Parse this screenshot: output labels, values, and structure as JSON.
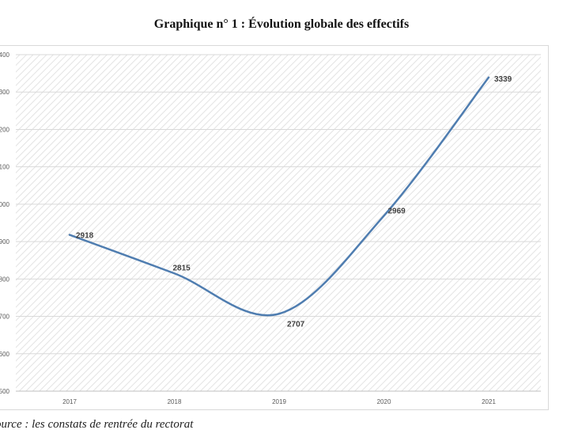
{
  "title": "Graphique n° 1 : Évolution globale des effectifs",
  "source": "ource : les constats de rentrée du rectorat",
  "colors": {
    "line": "#4f7db0",
    "grid": "#d9d9d9",
    "hatch": "#e3e3e3",
    "axis_text": "#595959"
  },
  "chart_data": {
    "type": "line",
    "title": "Graphique n° 1 : Évolution globale des effectifs",
    "categories": [
      "2017",
      "2018",
      "2019",
      "2020",
      "2021"
    ],
    "series": [
      {
        "values": [
          2918,
          2815,
          2707,
          2969,
          3339
        ]
      }
    ],
    "data_labels": [
      "2918",
      "2815",
      "2707",
      "2969",
      "3339"
    ],
    "y_tick_labels": [
      "400",
      "300",
      "200",
      "100",
      "000",
      "900",
      "800",
      "700",
      "600",
      "500"
    ],
    "ylim": [
      2500,
      3400
    ],
    "y_step": 100,
    "smooth": true,
    "grid": true,
    "legend": "none",
    "xlabel": "",
    "ylabel": ""
  }
}
